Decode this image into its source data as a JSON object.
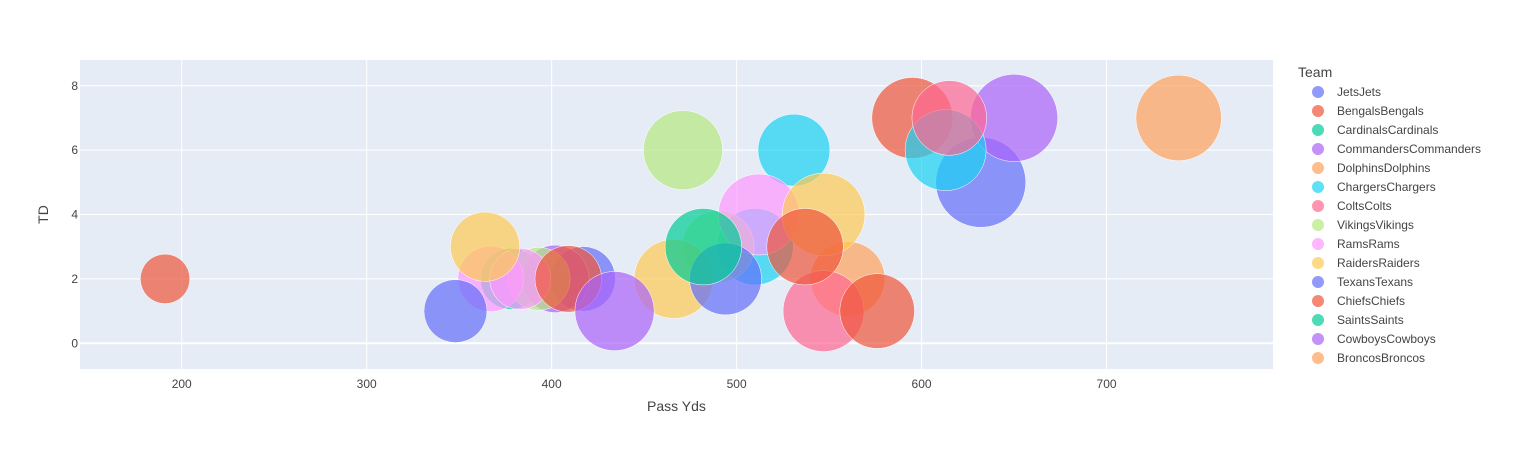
{
  "chart_data": {
    "type": "scatter",
    "title": "",
    "xlabel": "Pass Yds",
    "ylabel": "TD",
    "xlim": [
      145,
      790
    ],
    "ylim": [
      -0.8,
      8.8
    ],
    "xticks": [
      200,
      300,
      400,
      500,
      600,
      700
    ],
    "yticks": [
      0,
      2,
      4,
      6,
      8
    ],
    "grid": true,
    "legend_title": "Team",
    "legend_position": "right",
    "plot_background": "#e5ecf6",
    "series": [
      {
        "name": "JetsJets",
        "color": "#636efa",
        "points": [
          {
            "x": 632,
            "y": 5,
            "size": 1.0
          },
          {
            "x": 417,
            "y": 2,
            "size": 0.72
          }
        ]
      },
      {
        "name": "BengalsBengals",
        "color": "#EF553B",
        "points": [
          {
            "x": 191,
            "y": 2,
            "size": 0.55
          },
          {
            "x": 595,
            "y": 7,
            "size": 0.9
          }
        ]
      },
      {
        "name": "CardinalsCardinals",
        "color": "#00cc96",
        "points": [
          {
            "x": 378,
            "y": 2,
            "size": 0.68
          }
        ]
      },
      {
        "name": "CommandersCommanders",
        "color": "#ab63fa",
        "points": [
          {
            "x": 650,
            "y": 7,
            "size": 0.97
          },
          {
            "x": 402,
            "y": 2,
            "size": 0.75
          }
        ]
      },
      {
        "name": "DolphinsDolphins",
        "color": "#FFA15A",
        "points": [
          {
            "x": 739,
            "y": 7,
            "size": 0.95
          },
          {
            "x": 560,
            "y": 2,
            "size": 0.83
          }
        ]
      },
      {
        "name": "ChargersChargers",
        "color": "#19d3f3",
        "points": [
          {
            "x": 531,
            "y": 6,
            "size": 0.8
          },
          {
            "x": 613,
            "y": 6,
            "size": 0.9
          },
          {
            "x": 510,
            "y": 3,
            "size": 0.85
          }
        ]
      },
      {
        "name": "ColtsColts",
        "color": "#FF6692",
        "points": [
          {
            "x": 615,
            "y": 7,
            "size": 0.83
          },
          {
            "x": 547,
            "y": 1,
            "size": 0.9
          }
        ]
      },
      {
        "name": "VikingsVikings",
        "color": "#B6E880",
        "points": [
          {
            "x": 471,
            "y": 6,
            "size": 0.88
          },
          {
            "x": 393,
            "y": 2,
            "size": 0.7
          },
          {
            "x": 490,
            "y": 3,
            "size": 0.8
          }
        ]
      },
      {
        "name": "RamsRams",
        "color": "#FF97FF",
        "points": [
          {
            "x": 512,
            "y": 4,
            "size": 0.9
          },
          {
            "x": 367,
            "y": 2,
            "size": 0.73
          },
          {
            "x": 383,
            "y": 2,
            "size": 0.68
          }
        ]
      },
      {
        "name": "RaidersRaiders",
        "color": "#FECB52",
        "points": [
          {
            "x": 547,
            "y": 4,
            "size": 0.92
          },
          {
            "x": 364,
            "y": 3,
            "size": 0.77
          },
          {
            "x": 466,
            "y": 2,
            "size": 0.88
          }
        ]
      },
      {
        "name": "TexansTexans",
        "color": "#636efa",
        "points": [
          {
            "x": 348,
            "y": 1,
            "size": 0.7
          },
          {
            "x": 494,
            "y": 2,
            "size": 0.8
          }
        ]
      },
      {
        "name": "ChiefsChiefs",
        "color": "#EF553B",
        "points": [
          {
            "x": 576,
            "y": 1,
            "size": 0.83
          },
          {
            "x": 537,
            "y": 3,
            "size": 0.85
          },
          {
            "x": 409,
            "y": 2,
            "size": 0.74
          }
        ]
      },
      {
        "name": "SaintsSaints",
        "color": "#00cc96",
        "points": [
          {
            "x": 482,
            "y": 3,
            "size": 0.85
          }
        ]
      },
      {
        "name": "CowboysCowboys",
        "color": "#ab63fa",
        "points": [
          {
            "x": 434,
            "y": 1,
            "size": 0.88
          }
        ]
      },
      {
        "name": "BroncosBroncos",
        "color": "#FFA15A",
        "points": []
      }
    ]
  }
}
